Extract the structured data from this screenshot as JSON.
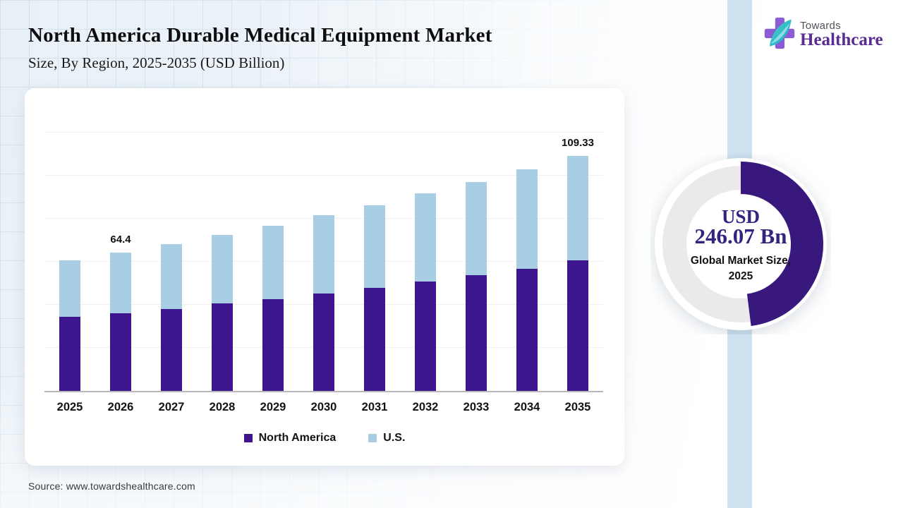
{
  "logo": {
    "top": "Towards",
    "bottom": "Healthcare"
  },
  "source": {
    "text": "Source: www.towardshealthcare.com"
  },
  "chart_data": [
    {
      "type": "bar",
      "stacked": true,
      "title": "North America Durable Medical Equipment Market",
      "subtitle": "Size, By Region, 2025-2035 (USD Billion)",
      "unit": "USD Billion",
      "categories": [
        "2025",
        "2026",
        "2027",
        "2028",
        "2029",
        "2030",
        "2031",
        "2032",
        "2033",
        "2034",
        "2035"
      ],
      "series": [
        {
          "name": "North America",
          "color": "#3d158c",
          "values": [
            34.4,
            36.0,
            38.0,
            40.6,
            42.6,
            45.2,
            47.8,
            50.7,
            53.7,
            56.6,
            60.6
          ]
        },
        {
          "name": "U.S.",
          "color": "#a9cee3",
          "values": [
            26.3,
            28.4,
            30.3,
            31.8,
            34.2,
            36.3,
            38.6,
            41.0,
            43.5,
            46.5,
            48.73
          ]
        }
      ],
      "totals": [
        60.7,
        64.4,
        68.3,
        72.4,
        76.8,
        81.5,
        86.4,
        91.7,
        97.2,
        103.1,
        109.33
      ],
      "callouts": [
        {
          "category": "2026",
          "label": "64.4"
        },
        {
          "category": "2035",
          "label": "109.33"
        }
      ],
      "ylim": [
        0,
        120
      ],
      "grid": "faint-horizontal",
      "legend_position": "bottom"
    },
    {
      "type": "donut",
      "percent_filled": 48,
      "value_line1": "USD",
      "value_line2": "246.07 Bn",
      "caption_line1": "Global Market Size,",
      "caption_line2": "2025",
      "arc_color": "#38187d",
      "ring_color": "#ebe9e9"
    }
  ],
  "colors": {
    "band": "#cde2ef",
    "background": "#e9f1f7",
    "grid_line": "#d3e2ed",
    "axis": "#b7b7ba",
    "donut_value_text": "#342480",
    "logo_purple": "#5a2b90"
  }
}
